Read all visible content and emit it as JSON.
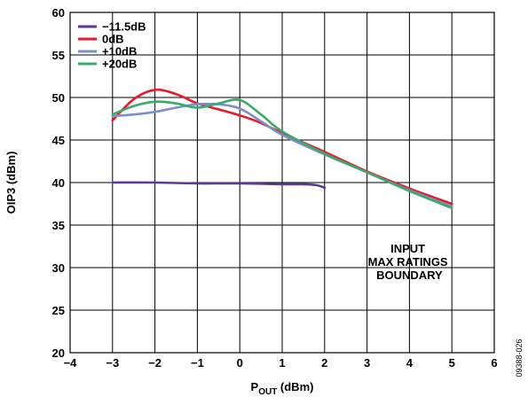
{
  "chart_data": {
    "type": "line",
    "xlabel": "P",
    "xlabel_sub": "OUT",
    "xlabel_unit": " (dBm)",
    "ylabel": "OIP3 (dBm)",
    "xlim": [
      -4,
      6
    ],
    "ylim": [
      20,
      60
    ],
    "xticks": [
      -4,
      -3,
      -2,
      -1,
      0,
      1,
      2,
      3,
      4,
      5,
      6
    ],
    "yticks": [
      20,
      25,
      30,
      35,
      40,
      45,
      50,
      55,
      60
    ],
    "grid": true,
    "legend_position": "top-left",
    "series": [
      {
        "name": "−11.5dB",
        "color": "#5b3a96",
        "x": [
          -3,
          -2,
          -1,
          0,
          1,
          1.5,
          1.8,
          2
        ],
        "y": [
          40.0,
          40.0,
          39.9,
          39.9,
          39.8,
          39.8,
          39.7,
          39.4
        ]
      },
      {
        "name": "0dB",
        "color": "#e8192c",
        "x": [
          -3,
          -2.5,
          -2,
          -1.5,
          -1,
          -0.5,
          0,
          0.5,
          1,
          2,
          3,
          4,
          5
        ],
        "y": [
          47.3,
          49.8,
          50.9,
          50.4,
          49.3,
          48.6,
          47.9,
          47.0,
          45.8,
          43.6,
          41.3,
          39.3,
          37.5
        ]
      },
      {
        "name": "+10dB",
        "color": "#7b90c6",
        "x": [
          -3,
          -2.5,
          -2,
          -1.5,
          -1,
          -0.5,
          0,
          0.5,
          1,
          2,
          3,
          4,
          5
        ],
        "y": [
          47.8,
          48.0,
          48.3,
          48.8,
          49.2,
          49.2,
          48.7,
          47.2,
          45.6,
          43.3,
          41.2,
          39.1,
          37.2
        ]
      },
      {
        "name": "+20dB",
        "color": "#3aaa6a",
        "x": [
          -3,
          -2.5,
          -2,
          -1.5,
          -1,
          -0.5,
          0,
          0.5,
          1,
          2,
          3,
          4,
          5
        ],
        "y": [
          48.0,
          49.0,
          49.5,
          49.3,
          48.8,
          49.3,
          49.7,
          48.0,
          46.0,
          43.4,
          41.2,
          39.0,
          37.0
        ]
      }
    ],
    "annotation": [
      "INPUT",
      "MAX RATINGS",
      "BOUNDARY"
    ],
    "annotation_at": {
      "x": 4.0,
      "y": 30.2
    }
  },
  "figure_id": "09388-026"
}
